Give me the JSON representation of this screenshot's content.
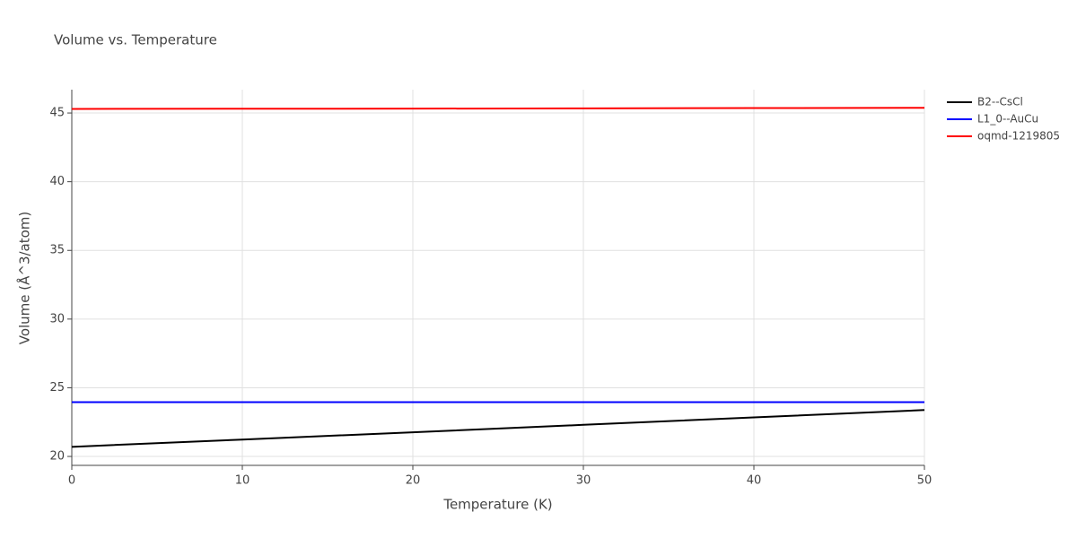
{
  "chart_data": {
    "type": "line",
    "title": "Volume vs. Temperature",
    "x_label": "Temperature (K)",
    "y_label": "Volume (Å^3/atom)",
    "x": [
      0,
      10,
      20,
      30,
      40,
      50
    ],
    "series": [
      {
        "name": "B2--CsCl",
        "color": "#000000",
        "values": [
          20.7,
          21.23,
          21.76,
          22.3,
          22.84,
          23.38
        ]
      },
      {
        "name": "L1_0--AuCu",
        "color": "#0000ff",
        "values": [
          23.95,
          23.95,
          23.95,
          23.95,
          23.95,
          23.95
        ]
      },
      {
        "name": "oqmd-1219805",
        "color": "#ff0000",
        "values": [
          45.3,
          45.31,
          45.32,
          45.34,
          45.36,
          45.38
        ]
      }
    ],
    "xlim": [
      0,
      50
    ],
    "xticks": [
      0,
      10,
      20,
      30,
      40,
      50
    ],
    "ylim": [
      19.35,
      46.7
    ],
    "yticks": [
      20,
      25,
      30,
      35,
      40,
      45
    ],
    "grid": true,
    "legend": "right"
  }
}
